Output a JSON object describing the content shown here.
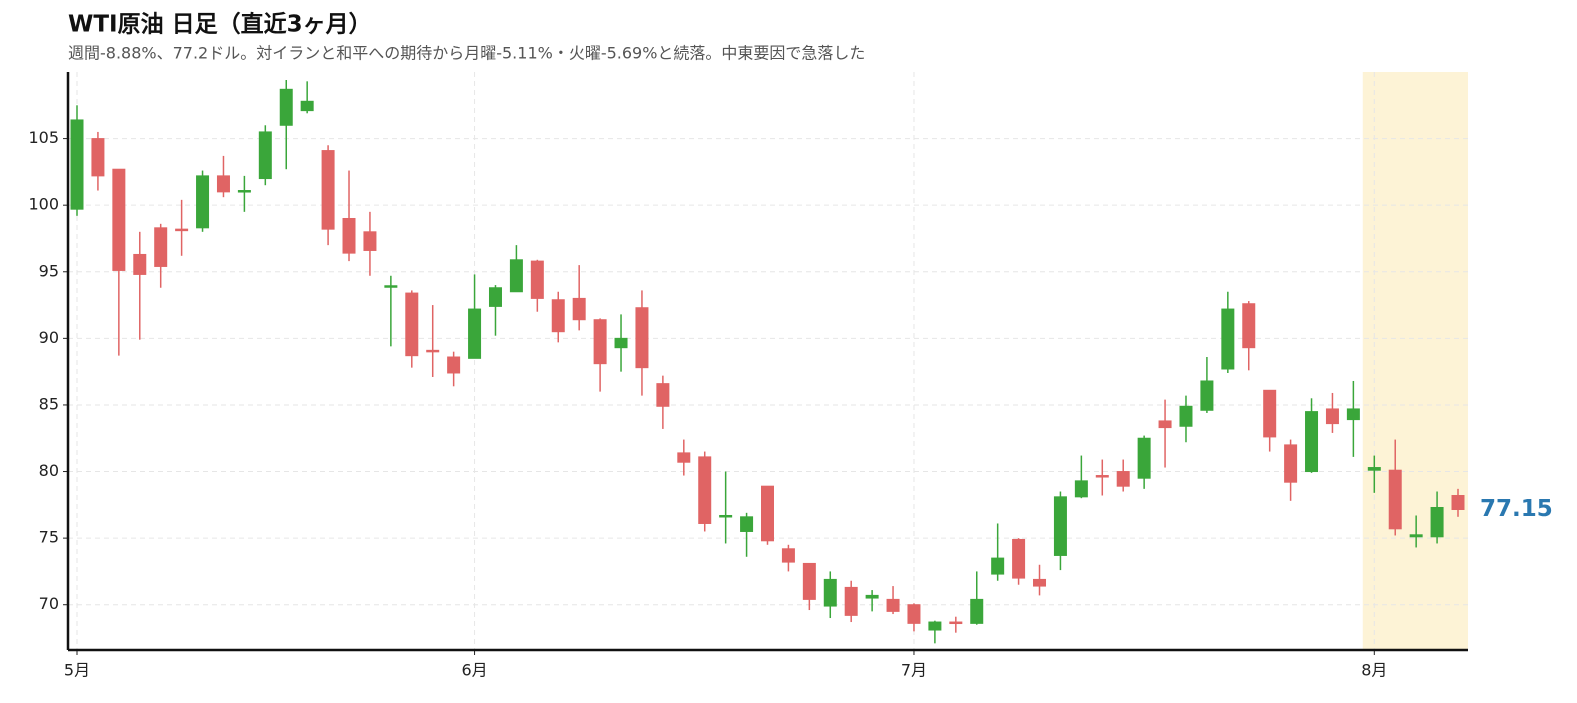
{
  "chart_data": {
    "type": "candlestick",
    "title": "WTI原油 日足（直近3ヶ月）",
    "subtitle": "週間-8.88%、77.2ドル。対イランと和平への期待から月曜-5.11%・火曜-5.69%と続落。中東要因で急落した",
    "categories": [
      "5月",
      null,
      null,
      null,
      null,
      null,
      null,
      null,
      null,
      null,
      null,
      null,
      null,
      null,
      null,
      null,
      null,
      null,
      null,
      "6月",
      null,
      null,
      null,
      null,
      null,
      null,
      null,
      null,
      null,
      null,
      null,
      null,
      null,
      null,
      null,
      null,
      null,
      null,
      null,
      null,
      "7月",
      null,
      null,
      null,
      null,
      null,
      null,
      null,
      null,
      null,
      null,
      null,
      null,
      null,
      null,
      null,
      null,
      null,
      null,
      null,
      null,
      null,
      "8月",
      null,
      null,
      null,
      null
    ],
    "series": [
      {
        "name": "open",
        "values": [
          99.7,
          105.0,
          102.7,
          96.3,
          98.3,
          98.2,
          98.3,
          102.2,
          101.0,
          102.0,
          106.0,
          107.1,
          104.1,
          99.0,
          98.0,
          93.85,
          93.4,
          89.1,
          88.6,
          88.5,
          92.4,
          93.5,
          95.8,
          92.9,
          93.0,
          91.4,
          89.3,
          92.3,
          86.6,
          81.4,
          81.1,
          76.6,
          75.5,
          78.9,
          74.2,
          73.1,
          69.9,
          71.3,
          70.5,
          70.4,
          70.0,
          68.1,
          68.7,
          68.6,
          72.3,
          74.9,
          71.9,
          73.7,
          78.1,
          79.7,
          80.0,
          79.5,
          83.8,
          83.4,
          84.6,
          87.7,
          92.6,
          86.1,
          82.0,
          80.0,
          84.7,
          83.9,
          80.1,
          80.1,
          75.1,
          75.1,
          78.2
        ]
      },
      {
        "name": "high",
        "values": [
          107.5,
          105.5,
          102.7,
          98.0,
          98.6,
          100.4,
          102.6,
          103.7,
          102.2,
          106.0,
          109.4,
          109.3,
          104.5,
          102.6,
          99.5,
          94.7,
          93.6,
          92.5,
          89.0,
          94.8,
          94.0,
          97.0,
          95.9,
          93.5,
          95.5,
          91.5,
          91.8,
          93.6,
          87.2,
          82.4,
          81.5,
          80.0,
          76.9,
          78.9,
          74.5,
          73.1,
          72.5,
          71.8,
          71.1,
          71.4,
          70.1,
          68.8,
          69.1,
          72.5,
          76.1,
          75.0,
          73.0,
          78.5,
          81.2,
          80.9,
          80.9,
          82.7,
          85.4,
          85.7,
          88.6,
          93.5,
          92.8,
          86.1,
          82.4,
          85.5,
          85.9,
          86.8,
          81.2,
          82.4,
          76.7,
          78.5,
          78.7
        ]
      },
      {
        "name": "low",
        "values": [
          99.2,
          101.1,
          88.7,
          89.9,
          93.8,
          96.2,
          98.0,
          100.6,
          99.5,
          101.5,
          102.7,
          106.9,
          97.0,
          95.8,
          94.7,
          89.4,
          87.8,
          87.1,
          86.4,
          88.5,
          90.2,
          93.5,
          92.0,
          89.7,
          90.6,
          86.0,
          87.5,
          85.7,
          83.2,
          79.7,
          75.5,
          74.6,
          73.6,
          74.5,
          72.5,
          69.6,
          69.0,
          68.7,
          69.5,
          69.3,
          68.0,
          67.1,
          67.9,
          68.5,
          71.8,
          71.5,
          70.7,
          72.6,
          78.0,
          78.2,
          78.5,
          78.7,
          80.3,
          82.2,
          84.4,
          87.4,
          87.6,
          81.5,
          77.8,
          79.9,
          82.9,
          81.1,
          78.4,
          75.2,
          74.3,
          74.6,
          76.6
        ]
      },
      {
        "name": "close",
        "values": [
          106.4,
          102.2,
          95.1,
          94.8,
          95.4,
          98.1,
          102.2,
          101.0,
          101.1,
          105.5,
          108.7,
          107.8,
          98.2,
          96.4,
          96.6,
          93.95,
          88.7,
          89.0,
          87.4,
          92.2,
          93.8,
          95.9,
          93.0,
          90.5,
          91.4,
          88.1,
          90.0,
          87.8,
          84.9,
          80.7,
          76.1,
          76.7,
          76.6,
          74.8,
          73.2,
          70.4,
          71.9,
          69.2,
          70.7,
          69.5,
          68.6,
          68.7,
          68.6,
          70.4,
          73.5,
          72.0,
          71.4,
          78.1,
          79.3,
          79.6,
          78.9,
          82.5,
          83.3,
          84.9,
          86.8,
          92.2,
          89.3,
          82.6,
          79.2,
          84.5,
          83.6,
          84.7,
          80.3,
          75.7,
          75.25,
          77.3,
          77.15
        ]
      }
    ],
    "up_color": "#3aa63a",
    "down_color": "#e06464",
    "ylim": [
      66.6,
      110
    ],
    "yticks": [
      70,
      75,
      80,
      85,
      90,
      95,
      100,
      105
    ],
    "grid": true,
    "highlight_from": 62,
    "highlight_color": "#fdf3d6",
    "last_label": 77.15,
    "last_label_color": "#2a78b0"
  }
}
